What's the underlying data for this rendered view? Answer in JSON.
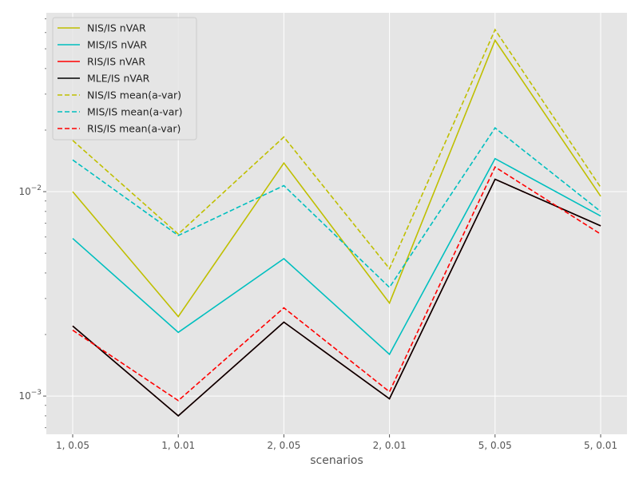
{
  "chart_data": {
    "type": "line",
    "xlabel": "scenarios",
    "ylabel": "",
    "yscale": "log",
    "ylim": [
      0.00065,
      0.075
    ],
    "grid": true,
    "legend_location": "top-left",
    "categories": [
      "1, 0.05",
      "1, 0.01",
      "2, 0.05",
      "2, 0.01",
      "5, 0.05",
      "5, 0.01"
    ],
    "y_tick_labels": [
      "10^{-3}",
      "10^{-2}"
    ],
    "series": [
      {
        "name": "NIS/IS nVAR",
        "color": "#bfbf00",
        "style": "solid",
        "values": [
          0.01,
          0.00245,
          0.0138,
          0.00285,
          0.055,
          0.0095
        ]
      },
      {
        "name": "MIS/IS nVAR",
        "color": "#00bfbf",
        "style": "solid",
        "values": [
          0.0059,
          0.00205,
          0.0047,
          0.0016,
          0.0145,
          0.0076
        ]
      },
      {
        "name": "RIS/IS nVAR",
        "color": "#ff0000",
        "style": "solid",
        "values": [
          0.0022,
          0.0008,
          0.0023,
          0.00097,
          0.0115,
          0.0068
        ]
      },
      {
        "name": "MLE/IS nVAR",
        "color": "#000000",
        "style": "solid",
        "values": [
          0.0022,
          0.0008,
          0.0023,
          0.00097,
          0.0115,
          0.0068
        ]
      },
      {
        "name": "NIS/IS mean(a-var)",
        "color": "#bfbf00",
        "style": "dashed",
        "values": [
          0.0178,
          0.0062,
          0.0185,
          0.0042,
          0.062,
          0.0105
        ]
      },
      {
        "name": "MIS/IS mean(a-var)",
        "color": "#00bfbf",
        "style": "dashed",
        "values": [
          0.0143,
          0.0061,
          0.0107,
          0.0034,
          0.0205,
          0.008
        ]
      },
      {
        "name": "RIS/IS mean(a-var)",
        "color": "#ff0000",
        "style": "dashed",
        "values": [
          0.0021,
          0.00095,
          0.0027,
          0.00105,
          0.0132,
          0.0062
        ]
      }
    ]
  }
}
